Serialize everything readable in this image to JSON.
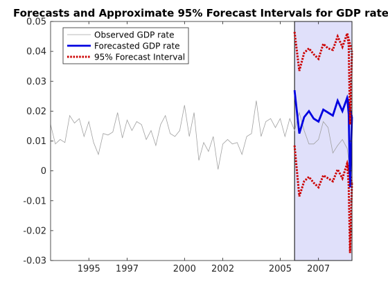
{
  "chart_data": {
    "type": "line",
    "title": "Forecasts and Approximate 95%  Forecast Intervals for GDP rate",
    "xlabel": "",
    "ylabel": "",
    "xlim": [
      1993.0,
      2008.75
    ],
    "ylim": [
      -0.03,
      0.05
    ],
    "x_ticks": [
      1995,
      1997,
      2000,
      2002,
      2005,
      2007
    ],
    "y_ticks": [
      -0.03,
      -0.02,
      -0.01,
      0,
      0.01,
      0.02,
      0.03,
      0.04,
      0.05
    ],
    "grid": false,
    "legend_position": "top-left",
    "forecast_region": {
      "x_start": 2005.75,
      "x_end": 2008.75,
      "color": "#e0e0fa"
    },
    "series": [
      {
        "name": "Observed GDP rate",
        "color": "#a0a0a0",
        "style": "solid",
        "x": [
          1993.0,
          1993.25,
          1993.5,
          1993.75,
          1994.0,
          1994.25,
          1994.5,
          1994.75,
          1995.0,
          1995.25,
          1995.5,
          1995.75,
          1996.0,
          1996.25,
          1996.5,
          1996.75,
          1997.0,
          1997.25,
          1997.5,
          1997.75,
          1998.0,
          1998.25,
          1998.5,
          1998.75,
          1999.0,
          1999.25,
          1999.5,
          1999.75,
          2000.0,
          2000.25,
          2000.5,
          2000.75,
          2001.0,
          2001.25,
          2001.5,
          2001.75,
          2002.0,
          2002.25,
          2002.5,
          2002.75,
          2003.0,
          2003.25,
          2003.5,
          2003.75,
          2004.0,
          2004.25,
          2004.5,
          2004.75,
          2005.0,
          2005.25,
          2005.5,
          2005.75,
          2006.0,
          2006.25,
          2006.5,
          2006.75,
          2007.0,
          2007.25,
          2007.5,
          2007.75,
          2008.0,
          2008.25,
          2008.5,
          2008.75
        ],
        "y": [
          0.0155,
          0.009,
          0.0105,
          0.0095,
          0.0185,
          0.016,
          0.0175,
          0.0115,
          0.0165,
          0.0095,
          0.0055,
          0.0125,
          0.012,
          0.013,
          0.0195,
          0.011,
          0.017,
          0.0135,
          0.0165,
          0.0155,
          0.0105,
          0.0135,
          0.0085,
          0.0155,
          0.0185,
          0.0125,
          0.0115,
          0.0135,
          0.022,
          0.0115,
          0.0195,
          0.0035,
          0.0095,
          0.0065,
          0.0115,
          0.0005,
          0.009,
          0.0105,
          0.009,
          0.0095,
          0.0055,
          0.0115,
          0.0125,
          0.0235,
          0.0115,
          0.0165,
          0.0175,
          0.0145,
          0.0175,
          0.0115,
          0.0175,
          0.0135,
          0.0195,
          0.0135,
          0.009,
          0.009,
          0.0105,
          0.0165,
          0.0145,
          0.006,
          0.0085,
          0.0105,
          0.0075,
          -0.0055
        ]
      },
      {
        "name": "Forecasted GDP rate",
        "color": "#0000e0",
        "style": "solid",
        "x": [
          2005.75,
          2006.0,
          2006.25,
          2006.5,
          2006.75,
          2007.0,
          2007.25,
          2007.5,
          2007.75,
          2008.0,
          2008.25,
          2008.5,
          2008.75
        ],
        "y": [
          0.027,
          0.0125,
          0.018,
          0.02,
          0.0175,
          0.0165,
          0.0205,
          0.0195,
          0.0185,
          0.0235,
          0.02,
          0.0245,
          0.018
        ]
      },
      {
        "name": "95% Forecast Interval",
        "color": "#cc0000",
        "style": "dotted",
        "x": [
          2005.75,
          2006.0,
          2006.25,
          2006.5,
          2006.75,
          2007.0,
          2007.25,
          2007.5,
          2007.75,
          2008.0,
          2008.25,
          2008.5,
          2008.75
        ],
        "y": [
          0.0465,
          0.0335,
          0.0395,
          0.041,
          0.039,
          0.0375,
          0.0425,
          0.041,
          0.0405,
          0.045,
          0.0415,
          0.046,
          0.04
        ]
      },
      {
        "name": "",
        "color": "#cc0000",
        "style": "dotted",
        "x": [
          2005.75,
          2006.0,
          2006.25,
          2006.5,
          2006.75,
          2007.0,
          2007.25,
          2007.5,
          2007.75,
          2008.0,
          2008.25,
          2008.5,
          2008.75
        ],
        "y": [
          0.0085,
          -0.0085,
          -0.0035,
          -0.002,
          -0.004,
          -0.0055,
          -0.0015,
          -0.0025,
          -0.0035,
          0.0005,
          -0.0025,
          0.0025,
          -0.004
        ]
      }
    ],
    "tail_drop": {
      "forecast_x": [
        2008.5,
        2008.58,
        2008.65,
        2008.75
      ],
      "forecast_y": [
        0.0245,
        0.019,
        -0.0055,
        0.018
      ],
      "upper_x": [
        2008.5,
        2008.58,
        2008.65,
        2008.75
      ],
      "upper_y": [
        0.046,
        0.042,
        0.0155,
        0.04
      ],
      "lower_x": [
        2008.5,
        2008.58,
        2008.65,
        2008.75
      ],
      "lower_y": [
        0.0025,
        -0.005,
        -0.0275,
        -0.004
      ]
    }
  }
}
